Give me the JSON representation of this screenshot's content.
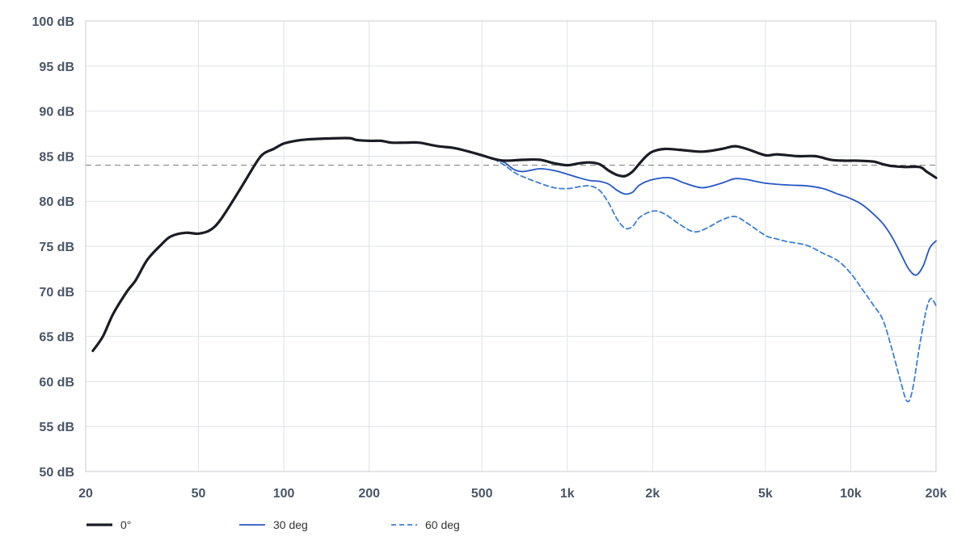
{
  "chart_data": {
    "type": "line",
    "title": "",
    "xlabel": "",
    "ylabel": "",
    "x_scale": "log",
    "xlim": [
      20,
      20000
    ],
    "ylim": [
      50,
      100
    ],
    "grid": true,
    "legend_position": "bottom-left",
    "x_ticks": [
      {
        "value": 20,
        "label": "20"
      },
      {
        "value": 50,
        "label": "50"
      },
      {
        "value": 100,
        "label": "100"
      },
      {
        "value": 200,
        "label": "200"
      },
      {
        "value": 500,
        "label": "500"
      },
      {
        "value": 1000,
        "label": "1k"
      },
      {
        "value": 2000,
        "label": "2k"
      },
      {
        "value": 5000,
        "label": "5k"
      },
      {
        "value": 10000,
        "label": "10k"
      },
      {
        "value": 20000,
        "label": "20k"
      }
    ],
    "y_ticks": [
      {
        "value": 100,
        "label": "100 dB"
      },
      {
        "value": 95,
        "label": "95 dB"
      },
      {
        "value": 90,
        "label": "90 dB"
      },
      {
        "value": 85,
        "label": "85 dB"
      },
      {
        "value": 80,
        "label": "80 dB"
      },
      {
        "value": 75,
        "label": "75 dB"
      },
      {
        "value": 70,
        "label": "70 dB"
      },
      {
        "value": 65,
        "label": "65 dB"
      },
      {
        "value": 60,
        "label": "60 dB"
      },
      {
        "value": 55,
        "label": "55 dB"
      },
      {
        "value": 50,
        "label": "50 dB"
      }
    ],
    "reference_line": {
      "y": 84,
      "color": "#888888",
      "style": "dashed"
    },
    "series": [
      {
        "name": "0°",
        "color": "#1a1d24",
        "style": "solid",
        "points": [
          [
            21.2,
            63.4
          ],
          [
            23,
            65
          ],
          [
            25,
            67.5
          ],
          [
            28,
            70
          ],
          [
            30,
            71.2
          ],
          [
            33,
            73.5
          ],
          [
            37,
            75.2
          ],
          [
            40,
            76.1
          ],
          [
            45,
            76.5
          ],
          [
            50,
            76.4
          ],
          [
            55,
            76.8
          ],
          [
            60,
            78
          ],
          [
            70,
            81.3
          ],
          [
            80,
            84.3
          ],
          [
            85,
            85.3
          ],
          [
            92,
            85.8
          ],
          [
            100,
            86.4
          ],
          [
            110,
            86.7
          ],
          [
            120,
            86.85
          ],
          [
            140,
            86.95
          ],
          [
            170,
            87
          ],
          [
            180,
            86.8
          ],
          [
            200,
            86.7
          ],
          [
            220,
            86.7
          ],
          [
            240,
            86.5
          ],
          [
            270,
            86.5
          ],
          [
            300,
            86.5
          ],
          [
            350,
            86.1
          ],
          [
            400,
            85.9
          ],
          [
            450,
            85.5
          ],
          [
            500,
            85.1
          ],
          [
            550,
            84.7
          ],
          [
            600,
            84.5
          ],
          [
            700,
            84.6
          ],
          [
            800,
            84.6
          ],
          [
            900,
            84.2
          ],
          [
            1000,
            84.0
          ],
          [
            1100,
            84.2
          ],
          [
            1200,
            84.3
          ],
          [
            1300,
            84.1
          ],
          [
            1400,
            83.4
          ],
          [
            1500,
            82.9
          ],
          [
            1600,
            82.8
          ],
          [
            1700,
            83.3
          ],
          [
            1800,
            84.2
          ],
          [
            1900,
            85.0
          ],
          [
            2000,
            85.5
          ],
          [
            2200,
            85.8
          ],
          [
            2500,
            85.7
          ],
          [
            3000,
            85.5
          ],
          [
            3500,
            85.8
          ],
          [
            3900,
            86.1
          ],
          [
            4300,
            85.8
          ],
          [
            5000,
            85.1
          ],
          [
            5500,
            85.2
          ],
          [
            6500,
            85.0
          ],
          [
            7500,
            85.0
          ],
          [
            8500,
            84.6
          ],
          [
            9500,
            84.5
          ],
          [
            10500,
            84.5
          ],
          [
            12000,
            84.4
          ],
          [
            13000,
            84.1
          ],
          [
            14000,
            83.9
          ],
          [
            15500,
            83.8
          ],
          [
            17500,
            83.8
          ],
          [
            18500,
            83.3
          ],
          [
            20000,
            82.6
          ]
        ]
      },
      {
        "name": "30 deg",
        "color": "#2457c5",
        "style": "solid",
        "points": [
          [
            550,
            84.7
          ],
          [
            600,
            84.3
          ],
          [
            650,
            83.5
          ],
          [
            700,
            83.3
          ],
          [
            800,
            83.6
          ],
          [
            900,
            83.4
          ],
          [
            1000,
            83.0
          ],
          [
            1100,
            82.6
          ],
          [
            1200,
            82.3
          ],
          [
            1300,
            82.2
          ],
          [
            1400,
            81.9
          ],
          [
            1500,
            81.2
          ],
          [
            1600,
            80.8
          ],
          [
            1700,
            81.0
          ],
          [
            1800,
            81.8
          ],
          [
            2000,
            82.4
          ],
          [
            2300,
            82.6
          ],
          [
            2600,
            82.0
          ],
          [
            3000,
            81.5
          ],
          [
            3500,
            82.0
          ],
          [
            3900,
            82.5
          ],
          [
            4300,
            82.4
          ],
          [
            5000,
            82.0
          ],
          [
            6000,
            81.8
          ],
          [
            7000,
            81.7
          ],
          [
            8000,
            81.4
          ],
          [
            9000,
            80.8
          ],
          [
            10000,
            80.3
          ],
          [
            11000,
            79.6
          ],
          [
            12000,
            78.6
          ],
          [
            13000,
            77.5
          ],
          [
            14000,
            76.0
          ],
          [
            15000,
            74.2
          ],
          [
            16000,
            72.5
          ],
          [
            17000,
            71.8
          ],
          [
            18000,
            72.8
          ],
          [
            19000,
            74.8
          ],
          [
            20000,
            75.6
          ]
        ]
      },
      {
        "name": "60 deg",
        "color": "#3b7fd9",
        "style": "dashed",
        "points": [
          [
            550,
            84.7
          ],
          [
            600,
            84.0
          ],
          [
            650,
            83.2
          ],
          [
            700,
            82.7
          ],
          [
            800,
            82.0
          ],
          [
            900,
            81.5
          ],
          [
            1000,
            81.4
          ],
          [
            1100,
            81.6
          ],
          [
            1200,
            81.7
          ],
          [
            1300,
            81.2
          ],
          [
            1400,
            79.8
          ],
          [
            1500,
            78.0
          ],
          [
            1600,
            77.0
          ],
          [
            1700,
            77.2
          ],
          [
            1800,
            78.2
          ],
          [
            2000,
            78.9
          ],
          [
            2200,
            78.6
          ],
          [
            2500,
            77.4
          ],
          [
            2800,
            76.6
          ],
          [
            3100,
            77.0
          ],
          [
            3500,
            77.9
          ],
          [
            3900,
            78.3
          ],
          [
            4300,
            77.6
          ],
          [
            5000,
            76.2
          ],
          [
            5500,
            75.8
          ],
          [
            6000,
            75.5
          ],
          [
            7000,
            75.1
          ],
          [
            8000,
            74.2
          ],
          [
            9000,
            73.4
          ],
          [
            10000,
            72.0
          ],
          [
            11000,
            70.2
          ],
          [
            12000,
            68.5
          ],
          [
            13000,
            66.8
          ],
          [
            14000,
            63.5
          ],
          [
            15000,
            60.0
          ],
          [
            15800,
            57.8
          ],
          [
            16500,
            59.0
          ],
          [
            17500,
            64.0
          ],
          [
            18500,
            68.0
          ],
          [
            19200,
            69.2
          ],
          [
            20000,
            68.4
          ]
        ]
      }
    ]
  }
}
